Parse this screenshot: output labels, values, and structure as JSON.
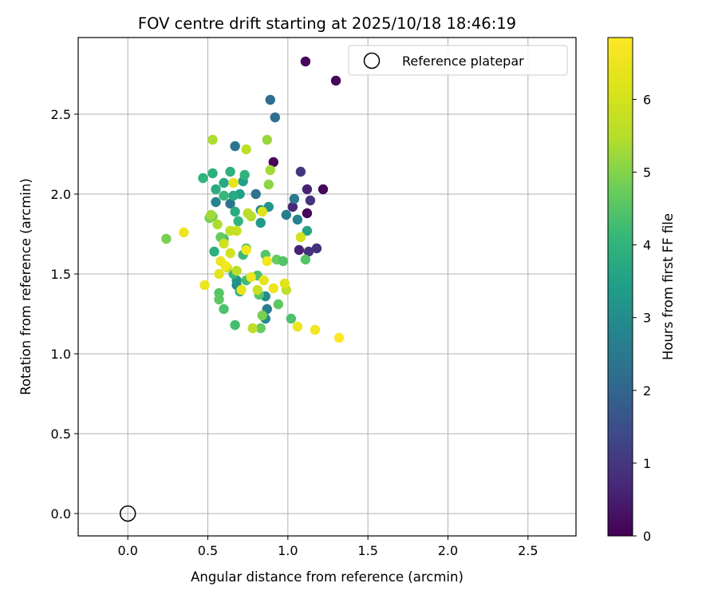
{
  "chart_data": {
    "type": "scatter",
    "title": "FOV centre drift starting at 2025/10/18 18:46:19",
    "xlabel": "Angular distance from reference (arcmin)",
    "ylabel": "Rotation from reference (arcmin)",
    "xlim": [
      -0.31,
      2.8
    ],
    "ylim": [
      -0.14,
      2.98
    ],
    "xticks": [
      "0.0",
      "0.5",
      "1.0",
      "1.5",
      "2.0",
      "2.5"
    ],
    "yticks": [
      "0.0",
      "0.5",
      "1.0",
      "1.5",
      "2.0",
      "2.5"
    ],
    "grid": true,
    "legend": {
      "label": "Reference platepar",
      "position": "upper right"
    },
    "reference_point": {
      "x": 0.0,
      "y": 0.0
    },
    "colorbar": {
      "label": "Hours from first FF file",
      "range": [
        0,
        6.85
      ],
      "ticks": [
        "0",
        "1",
        "2",
        "3",
        "4",
        "5",
        "6"
      ],
      "colormap": "viridis"
    },
    "points": [
      {
        "x": 1.11,
        "y": 2.83,
        "h": 0.1
      },
      {
        "x": 1.3,
        "y": 2.71,
        "h": 0.1
      },
      {
        "x": 0.91,
        "y": 2.2,
        "h": 0.1
      },
      {
        "x": 1.22,
        "y": 2.03,
        "h": 0.1
      },
      {
        "x": 1.12,
        "y": 1.88,
        "h": 0.1
      },
      {
        "x": 1.12,
        "y": 2.03,
        "h": 0.6
      },
      {
        "x": 1.08,
        "y": 2.14,
        "h": 1.0
      },
      {
        "x": 1.14,
        "y": 1.96,
        "h": 0.9
      },
      {
        "x": 1.03,
        "y": 1.92,
        "h": 0.7
      },
      {
        "x": 1.07,
        "y": 1.65,
        "h": 0.6
      },
      {
        "x": 1.13,
        "y": 1.64,
        "h": 0.9
      },
      {
        "x": 1.18,
        "y": 1.66,
        "h": 0.9
      },
      {
        "x": 0.89,
        "y": 2.59,
        "h": 2.2
      },
      {
        "x": 0.92,
        "y": 2.48,
        "h": 2.2
      },
      {
        "x": 0.67,
        "y": 2.3,
        "h": 2.4
      },
      {
        "x": 0.8,
        "y": 2.0,
        "h": 2.3
      },
      {
        "x": 1.04,
        "y": 1.97,
        "h": 2.5
      },
      {
        "x": 0.99,
        "y": 1.87,
        "h": 2.6
      },
      {
        "x": 1.06,
        "y": 1.84,
        "h": 2.8
      },
      {
        "x": 0.64,
        "y": 1.94,
        "h": 2.4
      },
      {
        "x": 0.55,
        "y": 1.95,
        "h": 2.8
      },
      {
        "x": 0.83,
        "y": 1.9,
        "h": 2.9
      },
      {
        "x": 0.83,
        "y": 1.82,
        "h": 3.3
      },
      {
        "x": 0.88,
        "y": 1.92,
        "h": 3.2
      },
      {
        "x": 1.12,
        "y": 1.77,
        "h": 3.6
      },
      {
        "x": 0.87,
        "y": 1.28,
        "h": 2.6
      },
      {
        "x": 0.86,
        "y": 1.22,
        "h": 2.9
      },
      {
        "x": 0.86,
        "y": 1.36,
        "h": 3.0
      },
      {
        "x": 0.68,
        "y": 1.43,
        "h": 3.0
      },
      {
        "x": 0.68,
        "y": 1.46,
        "h": 3.2
      },
      {
        "x": 0.7,
        "y": 2.0,
        "h": 3.5
      },
      {
        "x": 0.72,
        "y": 2.08,
        "h": 3.5
      },
      {
        "x": 0.66,
        "y": 1.99,
        "h": 3.7
      },
      {
        "x": 0.6,
        "y": 2.07,
        "h": 3.7
      },
      {
        "x": 0.55,
        "y": 2.03,
        "h": 3.8
      },
      {
        "x": 0.53,
        "y": 2.13,
        "h": 3.9
      },
      {
        "x": 0.47,
        "y": 2.1,
        "h": 4.0
      },
      {
        "x": 0.64,
        "y": 2.14,
        "h": 3.9
      },
      {
        "x": 0.73,
        "y": 2.12,
        "h": 4.0
      },
      {
        "x": 0.6,
        "y": 1.99,
        "h": 4.1
      },
      {
        "x": 0.69,
        "y": 1.83,
        "h": 4.0
      },
      {
        "x": 0.67,
        "y": 1.89,
        "h": 3.8
      },
      {
        "x": 0.54,
        "y": 1.64,
        "h": 3.9
      },
      {
        "x": 0.6,
        "y": 1.72,
        "h": 4.3
      },
      {
        "x": 0.66,
        "y": 1.5,
        "h": 4.1
      },
      {
        "x": 0.7,
        "y": 1.39,
        "h": 3.9
      },
      {
        "x": 0.72,
        "y": 1.62,
        "h": 4.2
      },
      {
        "x": 0.74,
        "y": 1.66,
        "h": 4.4
      },
      {
        "x": 0.74,
        "y": 1.46,
        "h": 4.3
      },
      {
        "x": 0.81,
        "y": 1.49,
        "h": 4.4
      },
      {
        "x": 0.82,
        "y": 1.37,
        "h": 4.5
      },
      {
        "x": 0.93,
        "y": 1.59,
        "h": 4.7
      },
      {
        "x": 0.97,
        "y": 1.58,
        "h": 4.5
      },
      {
        "x": 0.94,
        "y": 1.31,
        "h": 4.6
      },
      {
        "x": 1.02,
        "y": 1.22,
        "h": 4.4
      },
      {
        "x": 1.11,
        "y": 1.59,
        "h": 4.5
      },
      {
        "x": 0.86,
        "y": 1.62,
        "h": 4.5
      },
      {
        "x": 0.57,
        "y": 1.38,
        "h": 4.5
      },
      {
        "x": 0.57,
        "y": 1.34,
        "h": 4.6
      },
      {
        "x": 0.6,
        "y": 1.28,
        "h": 4.4
      },
      {
        "x": 0.67,
        "y": 1.18,
        "h": 4.3
      },
      {
        "x": 0.83,
        "y": 1.16,
        "h": 4.7
      },
      {
        "x": 0.84,
        "y": 1.24,
        "h": 4.9
      },
      {
        "x": 0.58,
        "y": 1.73,
        "h": 4.7
      },
      {
        "x": 0.53,
        "y": 1.86,
        "h": 4.8
      },
      {
        "x": 0.51,
        "y": 1.85,
        "h": 4.9
      },
      {
        "x": 0.24,
        "y": 1.72,
        "h": 4.9
      },
      {
        "x": 0.88,
        "y": 2.06,
        "h": 5.1
      },
      {
        "x": 0.87,
        "y": 2.34,
        "h": 5.2
      },
      {
        "x": 0.89,
        "y": 2.15,
        "h": 5.3
      },
      {
        "x": 0.53,
        "y": 2.34,
        "h": 5.4
      },
      {
        "x": 0.74,
        "y": 2.28,
        "h": 5.6
      },
      {
        "x": 0.75,
        "y": 1.88,
        "h": 5.6
      },
      {
        "x": 0.77,
        "y": 1.86,
        "h": 5.5
      },
      {
        "x": 0.52,
        "y": 1.87,
        "h": 5.3
      },
      {
        "x": 0.56,
        "y": 1.81,
        "h": 5.4
      },
      {
        "x": 0.64,
        "y": 1.77,
        "h": 5.7
      },
      {
        "x": 0.68,
        "y": 1.77,
        "h": 5.8
      },
      {
        "x": 0.6,
        "y": 1.69,
        "h": 5.9
      },
      {
        "x": 0.64,
        "y": 1.63,
        "h": 6.0
      },
      {
        "x": 0.68,
        "y": 1.52,
        "h": 5.6
      },
      {
        "x": 0.62,
        "y": 1.54,
        "h": 5.8
      },
      {
        "x": 0.78,
        "y": 1.16,
        "h": 5.6
      },
      {
        "x": 0.81,
        "y": 1.4,
        "h": 5.8
      },
      {
        "x": 0.99,
        "y": 1.4,
        "h": 5.6
      },
      {
        "x": 1.08,
        "y": 1.73,
        "h": 6.0
      },
      {
        "x": 0.84,
        "y": 1.89,
        "h": 6.2
      },
      {
        "x": 0.66,
        "y": 2.07,
        "h": 6.4
      },
      {
        "x": 0.35,
        "y": 1.76,
        "h": 6.5
      },
      {
        "x": 0.48,
        "y": 1.43,
        "h": 6.5
      },
      {
        "x": 0.58,
        "y": 1.58,
        "h": 6.5
      },
      {
        "x": 0.57,
        "y": 1.5,
        "h": 6.3
      },
      {
        "x": 0.61,
        "y": 1.55,
        "h": 6.6
      },
      {
        "x": 0.74,
        "y": 1.65,
        "h": 6.6
      },
      {
        "x": 0.77,
        "y": 1.48,
        "h": 6.5
      },
      {
        "x": 0.85,
        "y": 1.46,
        "h": 6.4
      },
      {
        "x": 0.87,
        "y": 1.58,
        "h": 6.6
      },
      {
        "x": 0.91,
        "y": 1.41,
        "h": 6.5
      },
      {
        "x": 0.98,
        "y": 1.44,
        "h": 6.3
      },
      {
        "x": 0.71,
        "y": 1.4,
        "h": 6.4
      },
      {
        "x": 1.06,
        "y": 1.17,
        "h": 6.5
      },
      {
        "x": 1.17,
        "y": 1.15,
        "h": 6.6
      },
      {
        "x": 1.32,
        "y": 1.1,
        "h": 6.85
      }
    ]
  }
}
